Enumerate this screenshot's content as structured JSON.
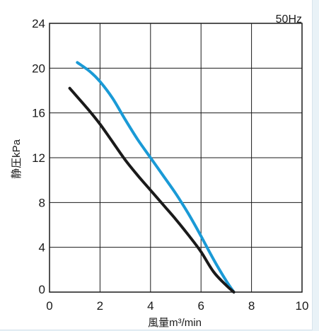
{
  "chart_data": {
    "type": "line",
    "frequency_label": "50Hz",
    "xlabel": "風量m³/min",
    "ylabel": "静圧kPa",
    "xlim": [
      0,
      10
    ],
    "ylim": [
      0,
      24
    ],
    "xticks": [
      0,
      2,
      4,
      6,
      8,
      10
    ],
    "yticks": [
      0,
      4,
      8,
      12,
      16,
      20,
      24
    ],
    "grid": true,
    "series": [
      {
        "color": "#1a9ad6",
        "points": [
          [
            1.1,
            20.5
          ],
          [
            1.6,
            19.7
          ],
          [
            2.0,
            18.8
          ],
          [
            2.5,
            17.3
          ],
          [
            3.0,
            15.4
          ],
          [
            3.5,
            13.6
          ],
          [
            4.0,
            12.0
          ],
          [
            4.5,
            10.4
          ],
          [
            5.0,
            8.8
          ],
          [
            5.5,
            7.0
          ],
          [
            6.0,
            5.0
          ],
          [
            6.5,
            2.9
          ],
          [
            7.0,
            1.0
          ],
          [
            7.3,
            0.0
          ]
        ]
      },
      {
        "color": "#1a1a1a",
        "points": [
          [
            0.8,
            18.2
          ],
          [
            1.5,
            16.4
          ],
          [
            2.0,
            15.0
          ],
          [
            2.5,
            13.4
          ],
          [
            3.0,
            11.8
          ],
          [
            3.5,
            10.4
          ],
          [
            4.0,
            9.1
          ],
          [
            4.5,
            7.8
          ],
          [
            5.0,
            6.5
          ],
          [
            5.5,
            5.1
          ],
          [
            6.0,
            3.6
          ],
          [
            6.5,
            1.8
          ],
          [
            7.0,
            0.6
          ],
          [
            7.3,
            0.0
          ]
        ]
      }
    ]
  }
}
